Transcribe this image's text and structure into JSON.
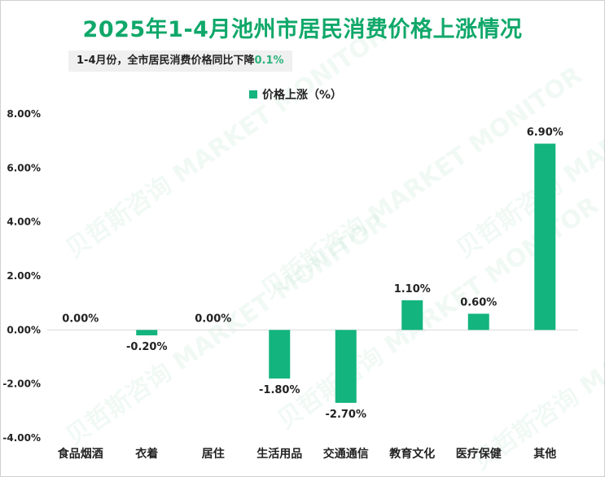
{
  "title": "2025年1-4月池州市居民消费价格上涨情况",
  "subtitle": {
    "text": "1-4月份，全市居民消费价格同比下降",
    "highlight": "0.1%"
  },
  "watermark": "贝哲斯咨询 MARKET MONITOR",
  "colors": {
    "bar": "#13b47e",
    "title": "#10a86a",
    "highlight": "#2bb37a"
  },
  "chart_data": {
    "type": "bar",
    "categories": [
      "食品烟酒",
      "衣着",
      "居住",
      "生活用品",
      "交通通信",
      "教育文化",
      "医疗保健",
      "其他"
    ],
    "series": [
      {
        "name": "价格上涨（%）",
        "values": [
          0.0,
          -0.2,
          0.0,
          -1.8,
          -2.7,
          1.1,
          0.6,
          6.9
        ]
      }
    ],
    "data_labels": [
      "0.00%",
      "-0.20%",
      "0.00%",
      "-1.80%",
      "-2.70%",
      "1.10%",
      "0.60%",
      "6.90%"
    ],
    "ylim": [
      -4,
      8
    ],
    "y_ticks": [
      8,
      6,
      4,
      2,
      0,
      -2,
      -4
    ],
    "y_tick_labels": [
      "8.00%",
      "6.00%",
      "4.00%",
      "2.00%",
      "0.00%",
      "-2.00%",
      "-4.00%"
    ],
    "legend_position": "top-center",
    "grid": false
  }
}
